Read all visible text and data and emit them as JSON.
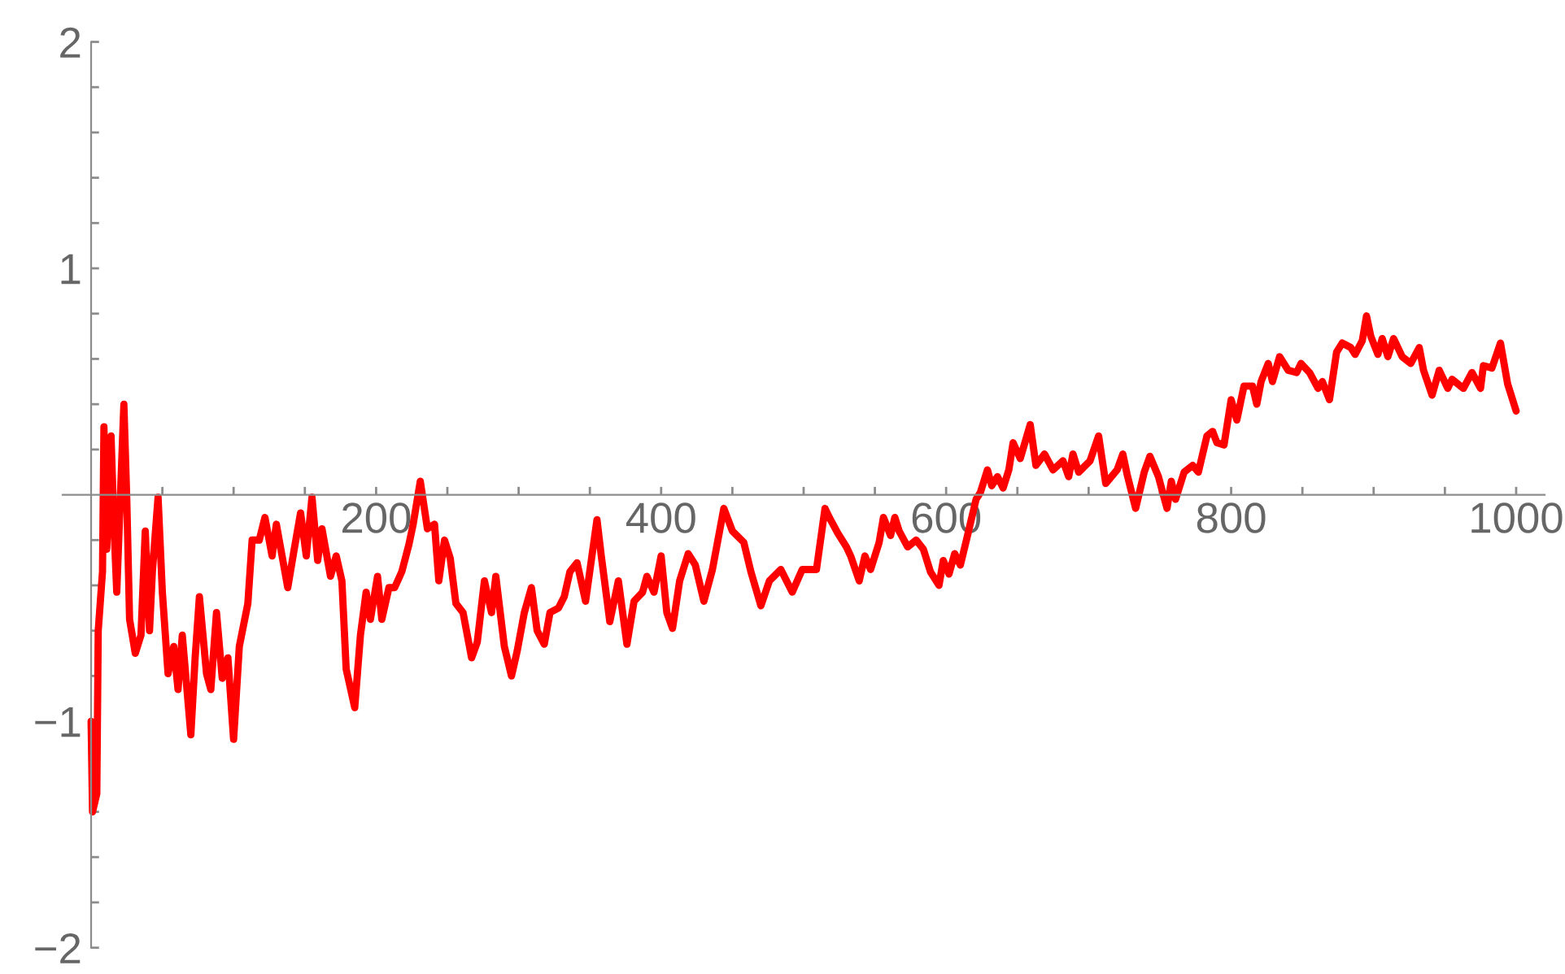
{
  "chart_data": {
    "type": "line",
    "xlim": [
      -20,
      1020
    ],
    "ylim": [
      -2,
      2
    ],
    "xticks": [
      {
        "value": 50,
        "label": null
      },
      {
        "value": 100,
        "label": null
      },
      {
        "value": 150,
        "label": null
      },
      200,
      {
        "value": 250,
        "label": null
      },
      {
        "value": 300,
        "label": null
      },
      {
        "value": 350,
        "label": null
      },
      400,
      {
        "value": 450,
        "label": null
      },
      {
        "value": 500,
        "label": null
      },
      {
        "value": 550,
        "label": null
      },
      600,
      {
        "value": 650,
        "label": null
      },
      {
        "value": 700,
        "label": null
      },
      {
        "value": 750,
        "label": null
      },
      800,
      {
        "value": 850,
        "label": null
      },
      {
        "value": 900,
        "label": null
      },
      {
        "value": 950,
        "label": null
      },
      1000
    ],
    "yticks": [
      {
        "value": -2,
        "label": "−2"
      },
      {
        "value": -1.8,
        "label": null
      },
      {
        "value": -1.6,
        "label": null
      },
      {
        "value": -1.4,
        "label": null
      },
      {
        "value": -1.2,
        "label": null
      },
      {
        "value": -1,
        "label": "−1"
      },
      {
        "value": -0.8,
        "label": null
      },
      {
        "value": -0.6,
        "label": null
      },
      {
        "value": -0.4,
        "label": null
      },
      {
        "value": -0.2,
        "label": null
      },
      {
        "value": 0.2,
        "label": null
      },
      {
        "value": 0.4,
        "label": null
      },
      {
        "value": 0.6,
        "label": null
      },
      {
        "value": 0.8,
        "label": null
      },
      1,
      {
        "value": 1.2,
        "label": null
      },
      {
        "value": 1.4,
        "label": null
      },
      {
        "value": 1.6,
        "label": null
      },
      {
        "value": 1.8,
        "label": null
      },
      2
    ],
    "grid": false,
    "legend": false,
    "series": [
      {
        "color": "#ff0000",
        "x": [
          0,
          1,
          4,
          5,
          8,
          9,
          11,
          14,
          16,
          18,
          23,
          25,
          27,
          31,
          35,
          38,
          41,
          43,
          47,
          50,
          54,
          58,
          61,
          64,
          67,
          70,
          73,
          76,
          81,
          84,
          88,
          92,
          96,
          100,
          104,
          110,
          113,
          118,
          122,
          127,
          130,
          134,
          138,
          142,
          147,
          151,
          155,
          159,
          162,
          168,
          172,
          176,
          179,
          185,
          189,
          193,
          196,
          201,
          204,
          209,
          213,
          218,
          223,
          226,
          231,
          236,
          241,
          244,
          248,
          252,
          256,
          261,
          267,
          271,
          276,
          281,
          284,
          290,
          295,
          299,
          304,
          309,
          313,
          318,
          322,
          328,
          332,
          336,
          341,
          347,
          355,
          358,
          364,
          370,
          376,
          381,
          387,
          390,
          395,
          400,
          404,
          408,
          413,
          419,
          424,
          430,
          436,
          444,
          450,
          458,
          463,
          470,
          476,
          484,
          492,
          499,
          503,
          509,
          515,
          518,
          524,
          530,
          533,
          539,
          543,
          547,
          553,
          556,
          561,
          564,
          567,
          573,
          579,
          584,
          589,
          595,
          598,
          602,
          606,
          610,
          615,
          621,
          624,
          629,
          632,
          636,
          640,
          644,
          647,
          652,
          659,
          663,
          669,
          675,
          682,
          686,
          689,
          693,
          701,
          707,
          712,
          720,
          724,
          727,
          733,
          739,
          743,
          749,
          755,
          758,
          761,
          767,
          773,
          777,
          783,
          787,
          790,
          795,
          800,
          804,
          809,
          815,
          818,
          821,
          826,
          829,
          834,
          840,
          846,
          849,
          855,
          861,
          864,
          869,
          874,
          878,
          884,
          887,
          892,
          895,
          898,
          903,
          906,
          910,
          914,
          920,
          926,
          932,
          935,
          941,
          946,
          952,
          955,
          963,
          969,
          975,
          977,
          983,
          989,
          994,
          1000
        ],
        "values": [
          -1.0,
          -1.4,
          -1.32,
          -0.6,
          -0.34,
          0.3,
          -0.24,
          0.26,
          -0.13,
          -0.43,
          0.4,
          -0.01,
          -0.55,
          -0.7,
          -0.62,
          -0.16,
          -0.6,
          -0.34,
          -0.01,
          -0.43,
          -0.79,
          -0.67,
          -0.86,
          -0.62,
          -0.84,
          -1.06,
          -0.72,
          -0.45,
          -0.79,
          -0.86,
          -0.52,
          -0.81,
          -0.72,
          -1.08,
          -0.67,
          -0.48,
          -0.2,
          -0.2,
          -0.1,
          -0.27,
          -0.13,
          -0.27,
          -0.41,
          -0.26,
          -0.08,
          -0.27,
          -0.01,
          -0.29,
          -0.15,
          -0.36,
          -0.27,
          -0.38,
          -0.77,
          -0.94,
          -0.62,
          -0.43,
          -0.55,
          -0.36,
          -0.55,
          -0.41,
          -0.41,
          -0.34,
          -0.22,
          -0.13,
          0.06,
          -0.15,
          -0.13,
          -0.38,
          -0.2,
          -0.28,
          -0.48,
          -0.52,
          -0.72,
          -0.65,
          -0.38,
          -0.52,
          -0.36,
          -0.67,
          -0.8,
          -0.69,
          -0.52,
          -0.41,
          -0.6,
          -0.66,
          -0.52,
          -0.5,
          -0.45,
          -0.34,
          -0.3,
          -0.47,
          -0.11,
          -0.27,
          -0.56,
          -0.38,
          -0.66,
          -0.47,
          -0.43,
          -0.36,
          -0.43,
          -0.27,
          -0.52,
          -0.59,
          -0.38,
          -0.26,
          -0.31,
          -0.47,
          -0.33,
          -0.06,
          -0.16,
          -0.21,
          -0.34,
          -0.49,
          -0.38,
          -0.33,
          -0.43,
          -0.33,
          -0.33,
          -0.33,
          -0.06,
          -0.1,
          -0.17,
          -0.23,
          -0.27,
          -0.38,
          -0.27,
          -0.33,
          -0.21,
          -0.1,
          -0.18,
          -0.1,
          -0.16,
          -0.23,
          -0.2,
          -0.24,
          -0.34,
          -0.4,
          -0.29,
          -0.35,
          -0.26,
          -0.31,
          -0.18,
          -0.02,
          0.01,
          0.11,
          0.04,
          0.08,
          0.03,
          0.11,
          0.23,
          0.16,
          0.31,
          0.13,
          0.18,
          0.11,
          0.15,
          0.08,
          0.18,
          0.1,
          0.15,
          0.26,
          0.05,
          0.11,
          0.18,
          0.09,
          -0.06,
          0.1,
          0.17,
          0.08,
          -0.06,
          0.06,
          -0.02,
          0.1,
          0.13,
          0.1,
          0.26,
          0.28,
          0.23,
          0.22,
          0.42,
          0.33,
          0.48,
          0.48,
          0.4,
          0.5,
          0.58,
          0.5,
          0.61,
          0.55,
          0.54,
          0.58,
          0.54,
          0.47,
          0.5,
          0.42,
          0.63,
          0.67,
          0.65,
          0.62,
          0.68,
          0.79,
          0.7,
          0.62,
          0.69,
          0.61,
          0.69,
          0.61,
          0.58,
          0.65,
          0.55,
          0.44,
          0.55,
          0.47,
          0.51,
          0.47,
          0.54,
          0.47,
          0.57,
          0.56,
          0.67,
          0.49,
          0.37
        ]
      }
    ]
  }
}
